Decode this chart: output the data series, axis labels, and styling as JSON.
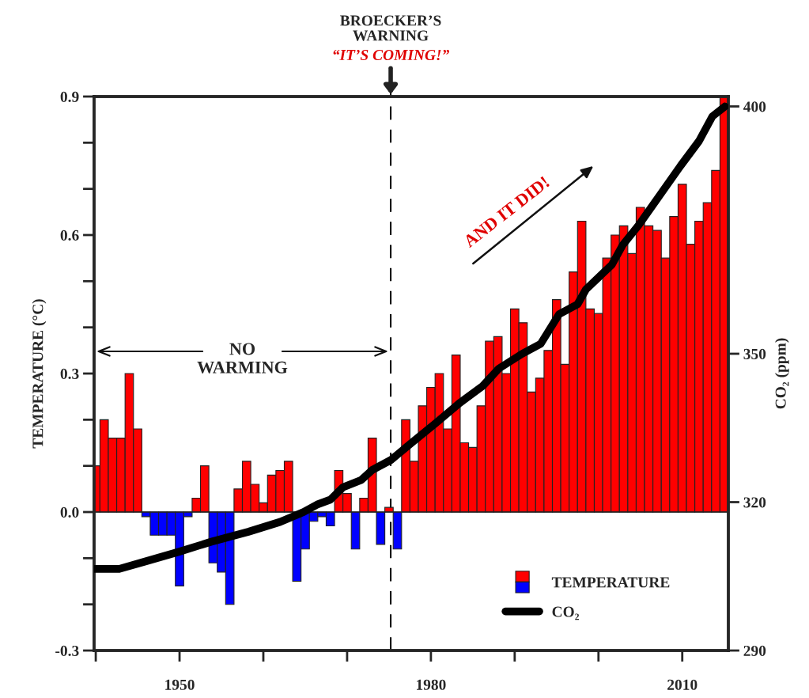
{
  "chart_data": {
    "type": "bar",
    "ylabel": "TEMPERATURE (°C)",
    "y2label": "CO₂ (ppm)",
    "x": [
      1940,
      1941,
      1942,
      1943,
      1944,
      1945,
      1946,
      1947,
      1948,
      1949,
      1950,
      1951,
      1952,
      1953,
      1954,
      1955,
      1956,
      1957,
      1958,
      1959,
      1960,
      1961,
      1962,
      1963,
      1964,
      1965,
      1966,
      1967,
      1968,
      1969,
      1970,
      1971,
      1972,
      1973,
      1974,
      1975,
      1976,
      1977,
      1978,
      1979,
      1980,
      1981,
      1982,
      1983,
      1984,
      1985,
      1986,
      1987,
      1988,
      1989,
      1990,
      1991,
      1992,
      1993,
      1994,
      1995,
      1996,
      1997,
      1998,
      1999,
      2000,
      2001,
      2002,
      2003,
      2004,
      2005,
      2006,
      2007,
      2008,
      2009,
      2010,
      2011,
      2012,
      2013,
      2014,
      2015
    ],
    "xlim": [
      1939.8,
      2015.5
    ],
    "xticks": [
      {
        "value": 1940,
        "label": null
      },
      1950,
      {
        "value": 1960,
        "label": null
      },
      {
        "value": 1970,
        "label": null
      },
      1980,
      {
        "value": 1990,
        "label": null
      },
      {
        "value": 2000,
        "label": null
      },
      2010
    ],
    "ylim": [
      -0.3,
      0.9
    ],
    "yticks": [
      -0.3,
      {
        "value": -0.2,
        "label": null
      },
      {
        "value": -0.1,
        "label": null
      },
      {
        "value": 0,
        "label": "0.0"
      },
      {
        "value": 0.1,
        "label": null
      },
      {
        "value": 0.2,
        "label": null
      },
      0.3,
      {
        "value": 0.4,
        "label": null
      },
      {
        "value": 0.5,
        "label": null
      },
      0.6,
      {
        "value": 0.7,
        "label": null
      },
      {
        "value": 0.8,
        "label": null
      },
      0.9
    ],
    "y2lim": [
      290,
      402
    ],
    "y2ticks": [
      290,
      320,
      350,
      400
    ],
    "series": [
      {
        "name": "TEMPERATURE",
        "type": "bar",
        "values": [
          0.1,
          0.2,
          0.16,
          0.16,
          0.3,
          0.18,
          -0.01,
          -0.05,
          -0.05,
          -0.05,
          -0.16,
          -0.01,
          0.03,
          0.1,
          -0.11,
          -0.13,
          -0.2,
          0.05,
          0.11,
          0.06,
          0.02,
          0.08,
          0.09,
          0.11,
          -0.15,
          -0.08,
          -0.02,
          -0.01,
          -0.03,
          0.09,
          0.04,
          -0.08,
          0.03,
          0.16,
          -0.07,
          0.01,
          -0.08,
          0.2,
          0.11,
          0.23,
          0.27,
          0.3,
          0.18,
          0.34,
          0.15,
          0.14,
          0.23,
          0.37,
          0.38,
          0.3,
          0.44,
          0.41,
          0.26,
          0.29,
          0.35,
          0.46,
          0.32,
          0.52,
          0.63,
          0.44,
          0.43,
          0.55,
          0.6,
          0.62,
          0.56,
          0.66,
          0.62,
          0.61,
          0.55,
          0.64,
          0.71,
          0.58,
          0.63,
          0.67,
          0.74,
          0.9
        ],
        "colors": [
          "#ff0000",
          "#ff0000",
          "#ff0000",
          "#ff0000",
          "#ff0000",
          "#ff0000",
          "#0000ff",
          "#0000ff",
          "#0000ff",
          "#0000ff",
          "#0000ff",
          "#0000ff",
          "#ff0000",
          "#ff0000",
          "#0000ff",
          "#0000ff",
          "#0000ff",
          "#ff0000",
          "#ff0000",
          "#ff0000",
          "#ff0000",
          "#ff0000",
          "#ff0000",
          "#ff0000",
          "#0000ff",
          "#0000ff",
          "#0000ff",
          "#0000ff",
          "#0000ff",
          "#ff0000",
          "#ff0000",
          "#0000ff",
          "#ff0000",
          "#ff0000",
          "#0000ff",
          "#ff0000",
          "#0000ff",
          "#ff0000",
          "#ff0000",
          "#ff0000",
          "#ff0000",
          "#ff0000",
          "#ff0000",
          "#ff0000",
          "#ff0000",
          "#ff0000",
          "#ff0000",
          "#ff0000",
          "#ff0000",
          "#ff0000",
          "#ff0000",
          "#ff0000",
          "#ff0000",
          "#ff0000",
          "#ff0000",
          "#ff0000",
          "#ff0000",
          "#ff0000",
          "#ff0000",
          "#ff0000",
          "#ff0000",
          "#ff0000",
          "#ff0000",
          "#ff0000",
          "#ff0000",
          "#ff0000",
          "#ff0000",
          "#ff0000",
          "#ff0000",
          "#ff0000",
          "#ff0000",
          "#ff0000",
          "#ff0000",
          "#ff0000",
          "#ff0000",
          "#ff0000"
        ]
      },
      {
        "name": "CO₂",
        "type": "line",
        "axis": "y2",
        "color": "#000000",
        "x": [
          1939.8,
          1942.8,
          1945.9,
          1950.0,
          1953.8,
          1958.2,
          1962.0,
          1964.8,
          1966.4,
          1968.0,
          1969.5,
          1971.7,
          1973.0,
          1975.2,
          1977.7,
          1980.6,
          1983.4,
          1986.2,
          1988.1,
          1990.9,
          1993.1,
          1995.3,
          1997.5,
          1998.5,
          2001.6,
          2002.9,
          2004.8,
          2007.3,
          2009.8,
          2012.0,
          2013.6,
          2015.1
        ],
        "values": [
          306.5,
          306.5,
          308,
          310,
          312,
          314,
          316,
          318,
          319.5,
          320.5,
          323,
          324.5,
          326.5,
          328.5,
          332,
          336,
          340,
          343.5,
          347,
          350,
          352,
          358,
          360,
          363,
          368,
          372,
          376,
          382,
          388,
          393,
          398,
          400
        ]
      }
    ],
    "ref_lines": [
      {
        "axis": "x",
        "value": 1975.2,
        "label": "“IT’S COMING!”",
        "line_style": "dashed",
        "color": "#000000"
      }
    ],
    "annotations": [
      "BROECKER’S\nWARNING",
      "NO\nWARMING",
      "AND IT DID!"
    ],
    "legend": "bottom right"
  }
}
